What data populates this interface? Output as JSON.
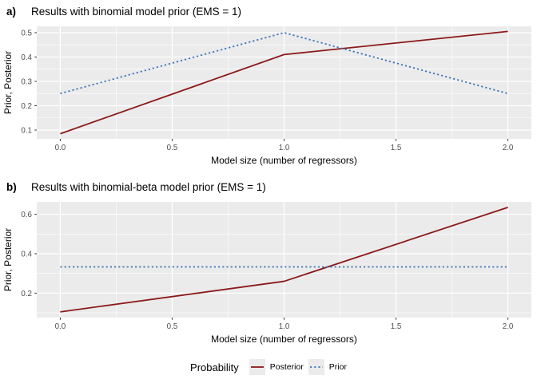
{
  "panels": [
    {
      "tag": "a)",
      "title": "Results with binomial model prior (EMS = 1)"
    },
    {
      "tag": "b)",
      "title": "Results with binomial-beta model prior (EMS = 1)"
    }
  ],
  "legend": {
    "title": "Probability",
    "key_fill": "#EBEBEB",
    "entries": [
      {
        "label": "Posterior",
        "color": "#8B1A1A",
        "linetype": "solid"
      },
      {
        "label": "Prior",
        "color": "#3E76B6",
        "linetype": "dotted"
      }
    ]
  },
  "colors": {
    "panel_fill": "#EBEBEB",
    "grid": "#FFFFFF",
    "tick_text": "#4D4D4D",
    "tick_mark": "#333333",
    "axis_text": "#000000"
  },
  "chart_data": [
    {
      "type": "line",
      "title": "a) Results with binomial model prior (EMS = 1)",
      "xlabel": "Model size (number of regressors)",
      "ylabel": "Prior, Posterior",
      "x": [
        0,
        1,
        2
      ],
      "series": [
        {
          "name": "Posterior",
          "values": [
            0.085,
            0.41,
            0.505
          ],
          "color": "#8B1A1A",
          "linetype": "solid"
        },
        {
          "name": "Prior",
          "values": [
            0.25,
            0.5,
            0.25
          ],
          "color": "#3E76B6",
          "linetype": "dotted"
        }
      ],
      "xlim": [
        -0.105,
        2.105
      ],
      "ylim": [
        0.064,
        0.526
      ],
      "xticks": [
        0,
        0.5,
        1,
        1.5,
        2
      ],
      "xtick_labels": [
        "0.0",
        "0.5",
        "1.0",
        "1.5",
        "2.0"
      ],
      "yticks": [
        0.1,
        0.2,
        0.3,
        0.4,
        0.5
      ],
      "ytick_labels": [
        "0.1",
        "0.2",
        "0.3",
        "0.4",
        "0.5"
      ],
      "xticks_minor": [
        0.25,
        0.75,
        1.25,
        1.75
      ],
      "yticks_minor": [
        0.15,
        0.25,
        0.35,
        0.45
      ],
      "grid": true,
      "legend_position": "bottom"
    },
    {
      "type": "line",
      "title": "b) Results with binomial-beta model prior (EMS = 1)",
      "xlabel": "Model size (number of regressors)",
      "ylabel": "Prior, Posterior",
      "x": [
        0,
        1,
        2
      ],
      "series": [
        {
          "name": "Posterior",
          "values": [
            0.105,
            0.26,
            0.635
          ],
          "color": "#8B1A1A",
          "linetype": "solid"
        },
        {
          "name": "Prior",
          "values": [
            0.333,
            0.333,
            0.333
          ],
          "color": "#3E76B6",
          "linetype": "dotted"
        }
      ],
      "xlim": [
        -0.105,
        2.105
      ],
      "ylim": [
        0.076,
        0.663
      ],
      "xticks": [
        0,
        0.5,
        1,
        1.5,
        2
      ],
      "xtick_labels": [
        "0.0",
        "0.5",
        "1.0",
        "1.5",
        "2.0"
      ],
      "yticks": [
        0.2,
        0.4,
        0.6
      ],
      "ytick_labels": [
        "0.2",
        "0.4",
        "0.6"
      ],
      "xticks_minor": [
        0.25,
        0.75,
        1.25,
        1.75
      ],
      "yticks_minor": [
        0.1,
        0.3,
        0.5
      ],
      "grid": true,
      "legend_position": "bottom"
    }
  ]
}
